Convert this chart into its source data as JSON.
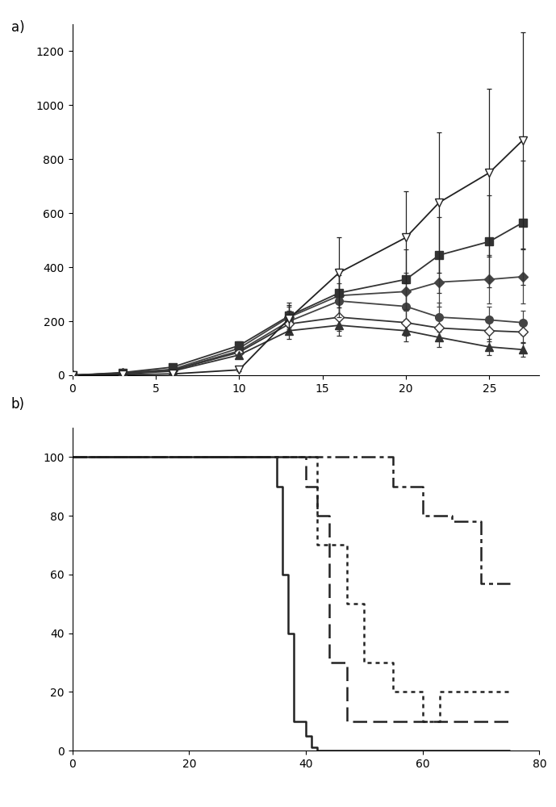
{
  "panel_a": {
    "x": [
      0,
      3,
      6,
      10,
      13,
      16,
      20,
      22,
      25,
      27
    ],
    "series": [
      {
        "name": "inv_triangle_open",
        "y": [
          0,
          2,
          5,
          20,
          210,
          380,
          510,
          640,
          750,
          870
        ],
        "yerr": [
          0,
          0,
          0,
          5,
          50,
          130,
          170,
          260,
          310,
          400
        ],
        "marker": "v",
        "mfc": "white",
        "mec": "#222222",
        "color": "#222222",
        "ms": 7,
        "zorder": 5
      },
      {
        "name": "filled_square",
        "y": [
          0,
          10,
          30,
          110,
          220,
          305,
          355,
          445,
          495,
          565
        ],
        "yerr": [
          0,
          3,
          6,
          15,
          50,
          90,
          110,
          140,
          170,
          230
        ],
        "marker": "s",
        "mfc": "#333333",
        "mec": "#333333",
        "color": "#333333",
        "ms": 7,
        "zorder": 4
      },
      {
        "name": "filled_diamond",
        "y": [
          0,
          8,
          22,
          100,
          215,
          295,
          310,
          345,
          355,
          365
        ],
        "yerr": [
          0,
          2,
          4,
          12,
          40,
          75,
          70,
          90,
          90,
          100
        ],
        "marker": "D",
        "mfc": "#444444",
        "mec": "#444444",
        "color": "#444444",
        "ms": 6,
        "zorder": 3
      },
      {
        "name": "filled_circle",
        "y": [
          0,
          8,
          20,
          90,
          200,
          275,
          255,
          215,
          205,
          195
        ],
        "yerr": [
          0,
          2,
          4,
          10,
          40,
          65,
          60,
          55,
          50,
          45
        ],
        "marker": "o",
        "mfc": "#444444",
        "mec": "#444444",
        "color": "#444444",
        "ms": 7,
        "zorder": 3
      },
      {
        "name": "open_diamond",
        "y": [
          0,
          7,
          18,
          85,
          190,
          215,
          195,
          175,
          165,
          160
        ],
        "yerr": [
          0,
          2,
          3,
          8,
          35,
          50,
          50,
          45,
          40,
          38
        ],
        "marker": "D",
        "mfc": "white",
        "mec": "#333333",
        "color": "#333333",
        "ms": 6,
        "zorder": 3
      },
      {
        "name": "filled_triangle",
        "y": [
          0,
          5,
          15,
          75,
          165,
          185,
          165,
          140,
          105,
          95
        ],
        "yerr": [
          0,
          1,
          3,
          7,
          30,
          40,
          40,
          35,
          30,
          25
        ],
        "marker": "^",
        "mfc": "#333333",
        "mec": "#333333",
        "color": "#333333",
        "ms": 7,
        "zorder": 3
      }
    ],
    "xlim": [
      0,
      28
    ],
    "ylim": [
      0,
      1300
    ],
    "xticks": [
      0,
      5,
      10,
      15,
      20,
      25
    ],
    "yticks": [
      0,
      200,
      400,
      600,
      800,
      1000,
      1200
    ]
  },
  "panel_b": {
    "series": [
      {
        "name": "solid",
        "x": [
          0,
          35,
          35,
          36,
          36,
          37,
          37,
          38,
          38,
          40,
          40,
          41,
          41,
          42,
          42,
          75
        ],
        "y": [
          100,
          100,
          90,
          90,
          60,
          60,
          40,
          40,
          10,
          10,
          5,
          5,
          1,
          1,
          0,
          0
        ],
        "linestyle": "solid",
        "color": "#222222",
        "lw": 1.8
      },
      {
        "name": "dashed",
        "x": [
          0,
          40,
          40,
          42,
          42,
          44,
          44,
          47,
          47,
          75
        ],
        "y": [
          100,
          100,
          90,
          90,
          80,
          80,
          30,
          30,
          10,
          10
        ],
        "linestyle": "dashed",
        "color": "#222222",
        "lw": 1.8
      },
      {
        "name": "dotted",
        "x": [
          0,
          42,
          42,
          47,
          47,
          50,
          50,
          55,
          55,
          60,
          60,
          63,
          63,
          75
        ],
        "y": [
          100,
          100,
          70,
          70,
          50,
          50,
          30,
          30,
          20,
          20,
          10,
          10,
          20,
          20
        ],
        "linestyle": "dotted",
        "color": "#222222",
        "lw": 1.8
      },
      {
        "name": "dashdot",
        "x": [
          0,
          42,
          42,
          55,
          55,
          60,
          60,
          65,
          65,
          70,
          70,
          75
        ],
        "y": [
          100,
          100,
          100,
          100,
          90,
          90,
          80,
          80,
          78,
          78,
          57,
          57
        ],
        "linestyle": "dashdot",
        "color": "#222222",
        "lw": 1.8
      }
    ],
    "xlim": [
      0,
      75
    ],
    "ylim": [
      0,
      110
    ],
    "xticks": [
      0,
      20,
      40,
      60,
      80
    ],
    "yticks": [
      0,
      20,
      40,
      60,
      80,
      100
    ]
  }
}
